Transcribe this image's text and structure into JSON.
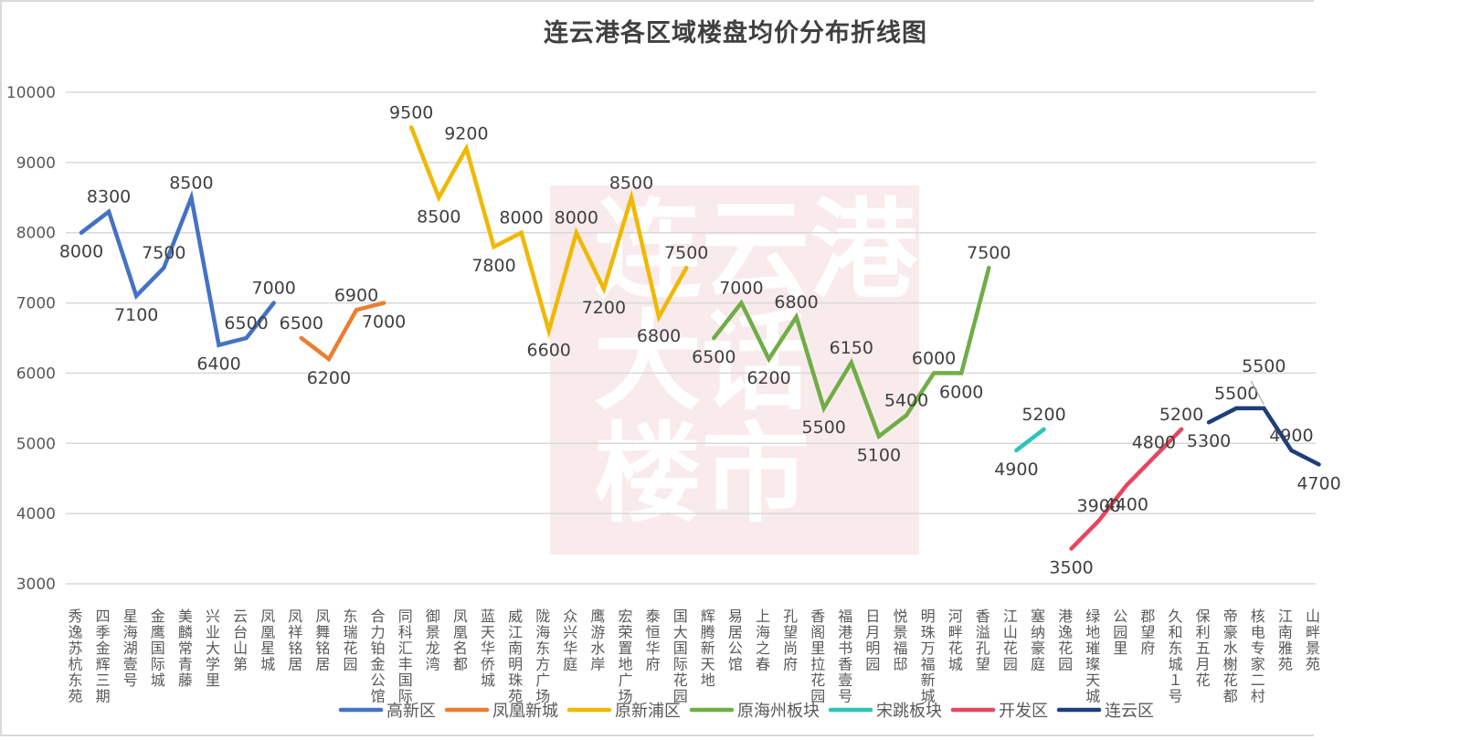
{
  "title": "连云港各区域楼盘均价分布折线图",
  "watermark": {
    "lines": [
      "连云港",
      "大话",
      "楼市"
    ],
    "bg_color": "#f9ebeb"
  },
  "chart_data": {
    "type": "line",
    "title": "连云港各区域楼盘均价分布折线图",
    "xlabel": "",
    "ylabel": "",
    "ylim": [
      3000,
      10000
    ],
    "yticks": [
      3000,
      4000,
      5000,
      6000,
      7000,
      8000,
      9000,
      10000
    ],
    "grid": true,
    "legend_position": "bottom",
    "categories": [
      "秀逸苏杭东苑",
      "四季金辉三期",
      "星海湖壹号",
      "金鹰国际城",
      "美麟常青藤",
      "兴业大学里",
      "云台山第",
      "凤凰星城",
      "凤祥铭居",
      "凤舞铭居",
      "东瑞花园",
      "合力铂金公馆",
      "同科汇丰国际",
      "御景龙湾",
      "凤凰名都",
      "蓝天华侨城",
      "威江南明珠苑",
      "陇海东方广场",
      "众兴华庭",
      "鹰游水岸",
      "宏荣置地广场",
      "泰恒华府",
      "国大国际花园",
      "辉腾新天地",
      "易居公馆",
      "上海之春",
      "孔望尚府",
      "香阁里拉花园",
      "福港书香壹号",
      "日月明园",
      "悦景福邸",
      "明珠万福新城",
      "河畔花城",
      "香溢孔望",
      "江山花园",
      "塞纳豪庭",
      "港逸花园",
      "绿地璀璨天城",
      "公园里",
      "郡望府",
      "久和东城１号",
      "保利五月花",
      "帝豪水榭花都",
      "核电专家二村",
      "江南雅苑",
      "山畔景苑"
    ],
    "series": [
      {
        "name": "高新区",
        "color": "#4472C4",
        "start": 0,
        "values": [
          8000,
          8300,
          7100,
          7500,
          8500,
          6400,
          6500,
          7000
        ],
        "label_pos": [
          "below",
          "above",
          "below",
          "above",
          "above",
          "below",
          "above",
          "above"
        ]
      },
      {
        "name": "凤凰新城",
        "color": "#ED7D31",
        "start": 8,
        "values": [
          6500,
          6200,
          6900,
          7000
        ],
        "label_pos": [
          "above",
          "below",
          "above",
          "below"
        ]
      },
      {
        "name": "原新浦区",
        "color": "#F0B800",
        "start": 12,
        "values": [
          9500,
          8500,
          9200,
          7800,
          8000,
          6600,
          8000,
          7200,
          8500,
          6800,
          7500
        ],
        "label_pos": [
          "above",
          "below",
          "above",
          "below",
          "above",
          "below",
          "above",
          "below",
          "above",
          "below",
          "above"
        ]
      },
      {
        "name": "原海州板块",
        "color": "#70AD47",
        "start": 23,
        "values": [
          6500,
          7000,
          6200,
          6800,
          5500,
          6150,
          5100,
          5400,
          6000,
          6000,
          7500
        ],
        "label_pos": [
          "below",
          "above",
          "below",
          "above",
          "below",
          "above",
          "below",
          "above",
          "above",
          "below",
          "above"
        ]
      },
      {
        "name": "宋跳板块",
        "color": "#2EC4B6",
        "start": 34,
        "values": [
          4900,
          5200
        ],
        "label_pos": [
          "below",
          "above"
        ]
      },
      {
        "name": "开发区",
        "color": "#E5465F",
        "start": 36,
        "values": [
          3500,
          3900,
          4400,
          4800,
          5200
        ],
        "label_pos": [
          "below",
          "above",
          "below",
          "above",
          "above"
        ]
      },
      {
        "name": "连云区",
        "color": "#1F3D7A",
        "start": 41,
        "values": [
          5300,
          5500,
          5500,
          4900,
          4700
        ],
        "label_pos": [
          "below",
          "above",
          "above2",
          "above",
          "below"
        ]
      }
    ]
  }
}
